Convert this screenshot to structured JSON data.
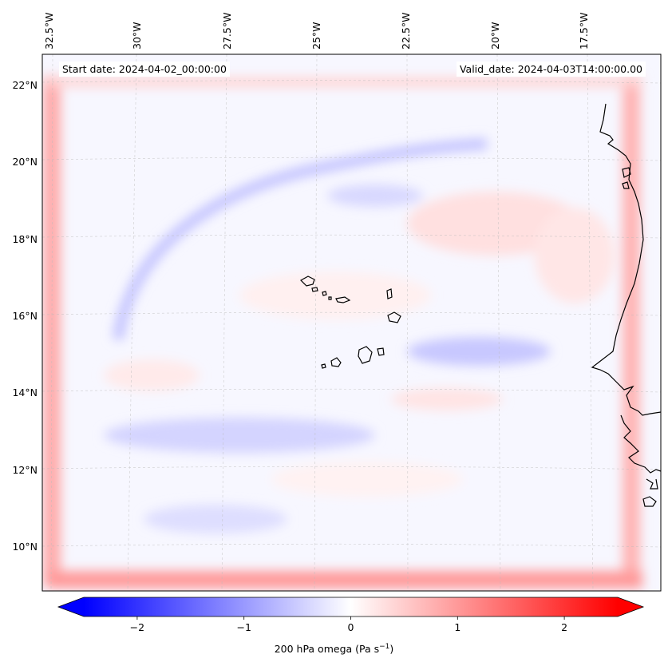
{
  "header": {
    "start_date": "Start date: 2024-04-02_00:00:00",
    "valid_date": "Valid_date: 2024-04-03T14:00:00.00"
  },
  "map": {
    "lon_labels": [
      "32.5°W",
      "30°W",
      "27.5°W",
      "25°W",
      "22.5°W",
      "20°W",
      "17.5°W"
    ],
    "lat_labels": [
      "22°N",
      "20°N",
      "18°N",
      "16°N",
      "14°N",
      "12°N",
      "10°N"
    ],
    "gridlines": "dashed"
  },
  "colorbar": {
    "label_main": "200 hPa omega (Pa s",
    "label_sup": "−1",
    "label_close": ")",
    "tick_labels": [
      "−2",
      "−1",
      "0",
      "1",
      "2"
    ],
    "tick_values": [
      -2,
      -1,
      0,
      1,
      2
    ],
    "range": [
      -2.5,
      2.5
    ],
    "extend": "both",
    "colormap": "bwr",
    "color_low": "#0000ff",
    "color_mid": "#ffffff",
    "color_high": "#ff0000"
  }
}
